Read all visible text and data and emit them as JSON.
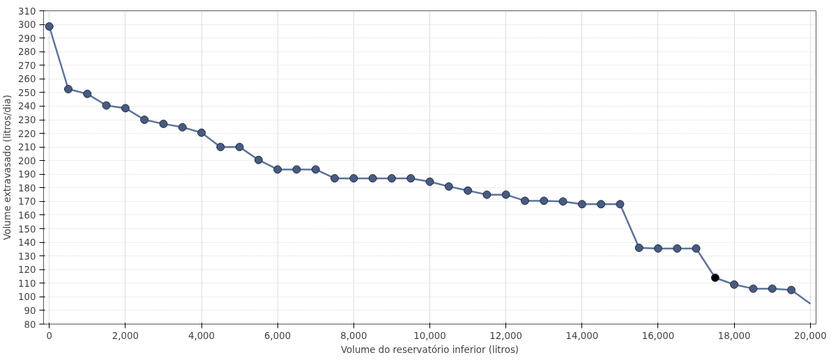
{
  "chart_data": {
    "type": "line",
    "xlabel": "Volume do reservatório inferior (litros)",
    "ylabel": "Volume extravasado (litros/dia)",
    "x": [
      0,
      500,
      1000,
      1500,
      2000,
      2500,
      3000,
      3500,
      4000,
      4500,
      5000,
      5500,
      6000,
      6500,
      7000,
      7500,
      8000,
      8500,
      9000,
      9500,
      10000,
      10500,
      11000,
      11500,
      12000,
      12500,
      13000,
      13500,
      14000,
      14500,
      15000,
      15500,
      16000,
      16500,
      17000,
      17500,
      18000,
      18500,
      19000,
      19500,
      20000
    ],
    "series": [
      {
        "color": "#5b7398",
        "values": [
          298.5,
          252.5,
          249,
          240.5,
          238.5,
          230,
          227,
          224.5,
          220.5,
          210,
          210,
          200.5,
          193.5,
          193.5,
          193.5,
          187,
          187,
          187,
          187,
          187,
          184.5,
          181,
          178,
          175,
          175,
          170.5,
          170.5,
          170,
          168,
          168,
          168,
          136,
          135.5,
          135.5,
          135.5,
          114,
          109,
          106,
          106,
          105,
          95
        ],
        "colors": [
          "#485b80",
          "#485b80",
          "#485b80",
          "#485b80",
          "#485b80",
          "#485b80",
          "#485b80",
          "#485b80",
          "#485b80",
          "#485b80",
          "#485b80",
          "#485b80",
          "#485b80",
          "#485b80",
          "#485b80",
          "#485b80",
          "#485b80",
          "#485b80",
          "#485b80",
          "#485b80",
          "#485b80",
          "#485b80",
          "#485b80",
          "#485b80",
          "#485b80",
          "#485b80",
          "#485b80",
          "#485b80",
          "#485b80",
          "#485b80",
          "#485b80",
          "#485b80",
          "#485b80",
          "#485b80",
          "#485b80",
          "#000000",
          "#485b80",
          "#485b80",
          "#485b80",
          "#485b80",
          null
        ]
      }
    ],
    "marker": "circle",
    "line_style": "solid",
    "grid": true,
    "xlim": [
      -150,
      20150
    ],
    "ylim": [
      80,
      310
    ],
    "xticks": [
      0,
      {
        "value": 2000,
        "label": "2,000"
      },
      {
        "value": 4000,
        "label": "4,000"
      },
      {
        "value": 6000,
        "label": "6,000"
      },
      {
        "value": 8000,
        "label": "8,000"
      },
      {
        "value": 10000,
        "label": "10,000"
      },
      {
        "value": 12000,
        "label": "12,000"
      },
      {
        "value": 14000,
        "label": "14,000"
      },
      {
        "value": 16000,
        "label": "16,000"
      },
      {
        "value": 18000,
        "label": "18,000"
      },
      {
        "value": 20000,
        "label": "20,000"
      }
    ],
    "yticks": [
      80,
      90,
      100,
      110,
      120,
      130,
      140,
      150,
      160,
      170,
      180,
      190,
      200,
      210,
      220,
      230,
      240,
      250,
      260,
      270,
      280,
      290,
      300,
      310
    ]
  }
}
